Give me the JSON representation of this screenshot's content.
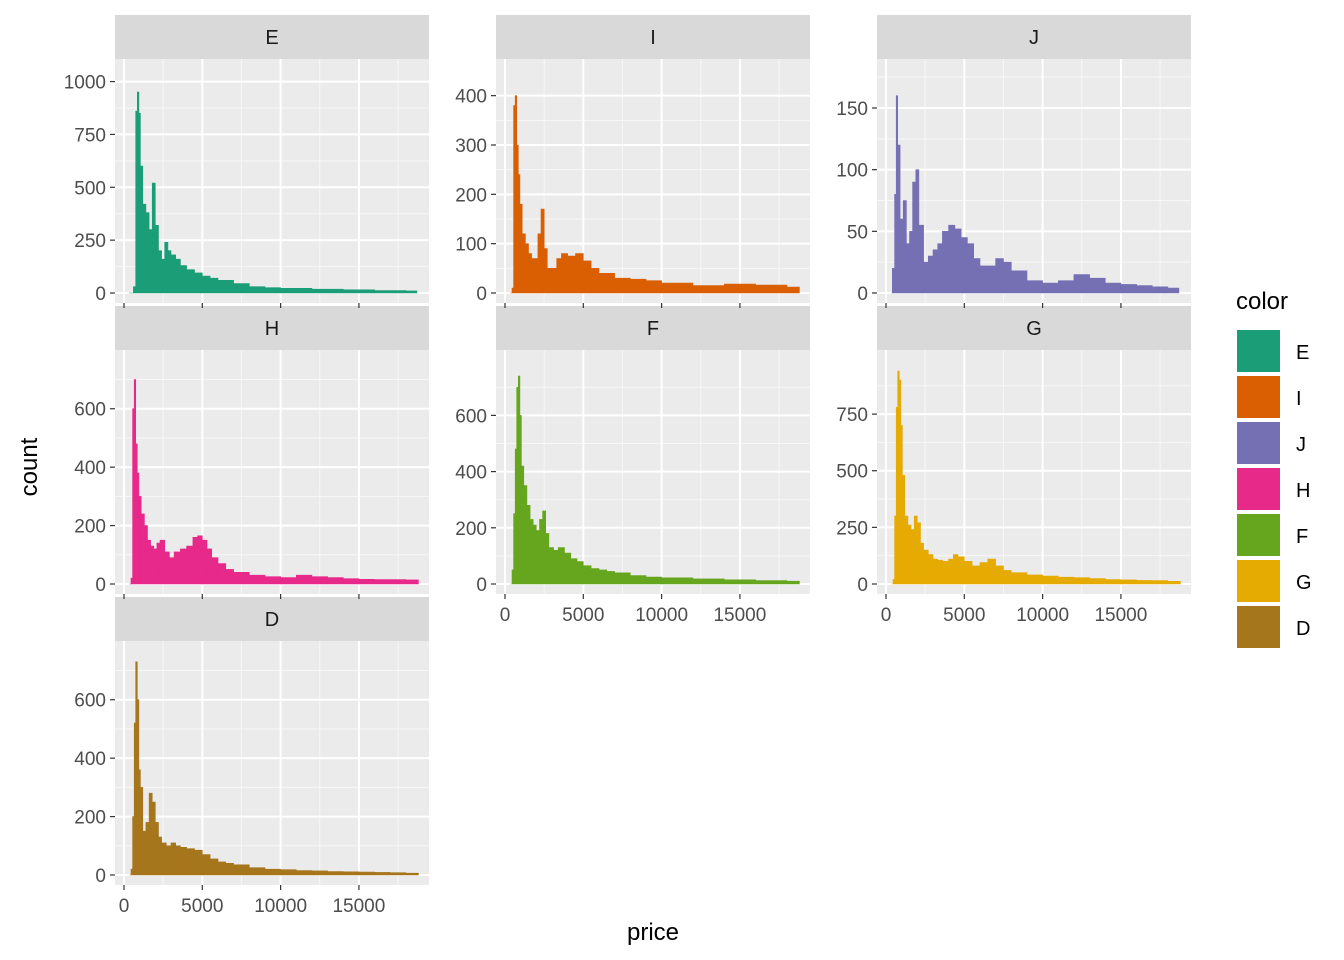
{
  "chart_data": {
    "type": "bar",
    "subtype": "faceted-histogram",
    "title": "",
    "xlabel": "price",
    "ylabel": "count",
    "x_range": [
      0,
      18900
    ],
    "x_ticks": [
      0,
      5000,
      10000,
      15000
    ],
    "x_tick_labels": [
      "0",
      "5000",
      "10000",
      "15000"
    ],
    "grid": true,
    "legend": {
      "title": "color",
      "placement": "right",
      "entries": [
        {
          "label": "E",
          "color": "#1B9E77"
        },
        {
          "label": "I",
          "color": "#D95F02"
        },
        {
          "label": "J",
          "color": "#7570B3"
        },
        {
          "label": "H",
          "color": "#E7298A"
        },
        {
          "label": "F",
          "color": "#66A61E"
        },
        {
          "label": "G",
          "color": "#E6AB02"
        },
        {
          "label": "D",
          "color": "#A6761D"
        }
      ]
    },
    "facets": [
      {
        "label": "E",
        "color": "#1B9E77",
        "ylim": [
          0,
          1050
        ],
        "y_ticks": [
          0,
          250,
          500,
          750,
          1000
        ],
        "y_tick_labels": [
          "0",
          "250",
          "500",
          "750",
          "1000"
        ],
        "points": [
          [
            326,
            0
          ],
          [
            600,
            30
          ],
          [
            750,
            860
          ],
          [
            850,
            950
          ],
          [
            950,
            850
          ],
          [
            1050,
            600
          ],
          [
            1200,
            420
          ],
          [
            1400,
            380
          ],
          [
            1600,
            300
          ],
          [
            1800,
            520
          ],
          [
            2000,
            320
          ],
          [
            2200,
            200
          ],
          [
            2400,
            160
          ],
          [
            2600,
            240
          ],
          [
            2800,
            200
          ],
          [
            3000,
            180
          ],
          [
            3300,
            160
          ],
          [
            3600,
            130
          ],
          [
            4000,
            110
          ],
          [
            4500,
            95
          ],
          [
            5000,
            80
          ],
          [
            5500,
            70
          ],
          [
            6000,
            60
          ],
          [
            7000,
            45
          ],
          [
            8000,
            30
          ],
          [
            9000,
            25
          ],
          [
            10000,
            22
          ],
          [
            12000,
            18
          ],
          [
            14000,
            15
          ],
          [
            16000,
            12
          ],
          [
            18000,
            10
          ],
          [
            18700,
            0
          ]
        ]
      },
      {
        "label": "I",
        "color": "#D95F02",
        "ylim": [
          0,
          450
        ],
        "y_ticks": [
          0,
          100,
          200,
          300,
          400
        ],
        "y_tick_labels": [
          "0",
          "100",
          "200",
          "300",
          "400"
        ],
        "points": [
          [
            334,
            0
          ],
          [
            450,
            10
          ],
          [
            550,
            380
          ],
          [
            650,
            400
          ],
          [
            750,
            300
          ],
          [
            850,
            240
          ],
          [
            950,
            180
          ],
          [
            1100,
            120
          ],
          [
            1300,
            100
          ],
          [
            1500,
            80
          ],
          [
            1700,
            70
          ],
          [
            1900,
            70
          ],
          [
            2100,
            120
          ],
          [
            2300,
            170
          ],
          [
            2500,
            90
          ],
          [
            2700,
            50
          ],
          [
            3000,
            50
          ],
          [
            3300,
            70
          ],
          [
            3600,
            80
          ],
          [
            4000,
            75
          ],
          [
            4500,
            80
          ],
          [
            5000,
            65
          ],
          [
            5500,
            50
          ],
          [
            6000,
            40
          ],
          [
            7000,
            30
          ],
          [
            8000,
            28
          ],
          [
            9000,
            25
          ],
          [
            10000,
            20
          ],
          [
            12000,
            15
          ],
          [
            14000,
            18
          ],
          [
            16000,
            16
          ],
          [
            18000,
            12
          ],
          [
            18800,
            0
          ]
        ]
      },
      {
        "label": "J",
        "color": "#7570B3",
        "ylim": [
          0,
          180
        ],
        "y_ticks": [
          0,
          50,
          100,
          150
        ],
        "y_tick_labels": [
          "0",
          "50",
          "100",
          "150"
        ],
        "points": [
          [
            335,
            0
          ],
          [
            400,
            20
          ],
          [
            550,
            80
          ],
          [
            650,
            160
          ],
          [
            750,
            120
          ],
          [
            900,
            60
          ],
          [
            1100,
            75
          ],
          [
            1300,
            40
          ],
          [
            1500,
            50
          ],
          [
            1700,
            90
          ],
          [
            1900,
            100
          ],
          [
            2100,
            55
          ],
          [
            2400,
            25
          ],
          [
            2700,
            30
          ],
          [
            3000,
            35
          ],
          [
            3300,
            40
          ],
          [
            3600,
            50
          ],
          [
            4000,
            55
          ],
          [
            4400,
            52
          ],
          [
            4800,
            45
          ],
          [
            5200,
            40
          ],
          [
            5600,
            28
          ],
          [
            6000,
            22
          ],
          [
            6500,
            22
          ],
          [
            7000,
            28
          ],
          [
            7500,
            25
          ],
          [
            8000,
            18
          ],
          [
            9000,
            10
          ],
          [
            10000,
            8
          ],
          [
            11000,
            10
          ],
          [
            12000,
            15
          ],
          [
            13000,
            12
          ],
          [
            14000,
            8
          ],
          [
            15000,
            7
          ],
          [
            16000,
            6
          ],
          [
            17000,
            5
          ],
          [
            18000,
            4
          ],
          [
            18700,
            0
          ]
        ]
      },
      {
        "label": "H",
        "color": "#E7298A",
        "ylim": [
          0,
          760
        ],
        "y_ticks": [
          0,
          200,
          400,
          600
        ],
        "y_tick_labels": [
          "0",
          "200",
          "400",
          "600"
        ],
        "points": [
          [
            337,
            0
          ],
          [
            450,
            20
          ],
          [
            550,
            600
          ],
          [
            650,
            700
          ],
          [
            750,
            480
          ],
          [
            850,
            380
          ],
          [
            950,
            300
          ],
          [
            1100,
            240
          ],
          [
            1300,
            200
          ],
          [
            1500,
            150
          ],
          [
            1700,
            130
          ],
          [
            1900,
            120
          ],
          [
            2100,
            140
          ],
          [
            2300,
            150
          ],
          [
            2600,
            110
          ],
          [
            2900,
            90
          ],
          [
            3200,
            110
          ],
          [
            3600,
            120
          ],
          [
            4000,
            130
          ],
          [
            4400,
            160
          ],
          [
            4700,
            165
          ],
          [
            5000,
            150
          ],
          [
            5300,
            120
          ],
          [
            5600,
            90
          ],
          [
            6000,
            70
          ],
          [
            6500,
            50
          ],
          [
            7000,
            40
          ],
          [
            8000,
            30
          ],
          [
            9000,
            25
          ],
          [
            10000,
            22
          ],
          [
            11000,
            30
          ],
          [
            12000,
            25
          ],
          [
            13000,
            22
          ],
          [
            14000,
            18
          ],
          [
            15000,
            16
          ],
          [
            16000,
            15
          ],
          [
            17000,
            15
          ],
          [
            18000,
            14
          ],
          [
            18800,
            0
          ]
        ]
      },
      {
        "label": "F",
        "color": "#66A61E",
        "ylim": [
          0,
          790
        ],
        "y_ticks": [
          0,
          200,
          400,
          600
        ],
        "y_tick_labels": [
          "0",
          "200",
          "400",
          "600"
        ],
        "points": [
          [
            342,
            0
          ],
          [
            450,
            50
          ],
          [
            550,
            250
          ],
          [
            650,
            480
          ],
          [
            750,
            700
          ],
          [
            850,
            740
          ],
          [
            950,
            600
          ],
          [
            1050,
            420
          ],
          [
            1200,
            350
          ],
          [
            1400,
            280
          ],
          [
            1600,
            230
          ],
          [
            1800,
            210
          ],
          [
            2000,
            190
          ],
          [
            2200,
            230
          ],
          [
            2400,
            260
          ],
          [
            2600,
            180
          ],
          [
            2800,
            130
          ],
          [
            3100,
            120
          ],
          [
            3400,
            130
          ],
          [
            3800,
            110
          ],
          [
            4200,
            90
          ],
          [
            4600,
            80
          ],
          [
            5000,
            65
          ],
          [
            5500,
            55
          ],
          [
            6000,
            50
          ],
          [
            6500,
            45
          ],
          [
            7000,
            40
          ],
          [
            8000,
            30
          ],
          [
            9000,
            25
          ],
          [
            10000,
            22
          ],
          [
            12000,
            18
          ],
          [
            14000,
            15
          ],
          [
            16000,
            12
          ],
          [
            18000,
            10
          ],
          [
            18800,
            0
          ]
        ]
      },
      {
        "label": "G",
        "color": "#E6AB02",
        "ylim": [
          0,
          980
        ],
        "y_ticks": [
          0,
          250,
          500,
          750
        ],
        "y_tick_labels": [
          "0",
          "250",
          "500",
          "750"
        ],
        "points": [
          [
            354,
            0
          ],
          [
            450,
            20
          ],
          [
            550,
            300
          ],
          [
            650,
            780
          ],
          [
            750,
            940
          ],
          [
            850,
            900
          ],
          [
            950,
            700
          ],
          [
            1050,
            480
          ],
          [
            1200,
            300
          ],
          [
            1400,
            260
          ],
          [
            1600,
            240
          ],
          [
            1800,
            300
          ],
          [
            2000,
            270
          ],
          [
            2200,
            180
          ],
          [
            2400,
            150
          ],
          [
            2700,
            130
          ],
          [
            3000,
            110
          ],
          [
            3300,
            105
          ],
          [
            3600,
            100
          ],
          [
            4000,
            110
          ],
          [
            4300,
            130
          ],
          [
            4600,
            120
          ],
          [
            5000,
            100
          ],
          [
            5500,
            80
          ],
          [
            6000,
            95
          ],
          [
            6500,
            110
          ],
          [
            7000,
            80
          ],
          [
            7500,
            60
          ],
          [
            8000,
            50
          ],
          [
            9000,
            40
          ],
          [
            10000,
            35
          ],
          [
            11000,
            30
          ],
          [
            12000,
            28
          ],
          [
            13000,
            24
          ],
          [
            14000,
            20
          ],
          [
            15000,
            18
          ],
          [
            16000,
            16
          ],
          [
            17000,
            15
          ],
          [
            18000,
            12
          ],
          [
            18800,
            0
          ]
        ]
      },
      {
        "label": "D",
        "color": "#A6761D",
        "ylim": [
          0,
          760
        ],
        "y_ticks": [
          0,
          200,
          400,
          600
        ],
        "y_tick_labels": [
          "0",
          "200",
          "400",
          "600"
        ],
        "points": [
          [
            357,
            0
          ],
          [
            450,
            20
          ],
          [
            550,
            200
          ],
          [
            650,
            520
          ],
          [
            750,
            730
          ],
          [
            850,
            600
          ],
          [
            950,
            360
          ],
          [
            1050,
            300
          ],
          [
            1200,
            150
          ],
          [
            1400,
            180
          ],
          [
            1600,
            280
          ],
          [
            1800,
            250
          ],
          [
            2000,
            180
          ],
          [
            2200,
            130
          ],
          [
            2400,
            110
          ],
          [
            2700,
            100
          ],
          [
            3000,
            110
          ],
          [
            3300,
            100
          ],
          [
            3600,
            95
          ],
          [
            4000,
            90
          ],
          [
            4500,
            85
          ],
          [
            5000,
            70
          ],
          [
            5500,
            55
          ],
          [
            6000,
            45
          ],
          [
            6500,
            40
          ],
          [
            7000,
            35
          ],
          [
            8000,
            25
          ],
          [
            9000,
            20
          ],
          [
            10000,
            18
          ],
          [
            11000,
            15
          ],
          [
            12000,
            14
          ],
          [
            13000,
            12
          ],
          [
            14000,
            11
          ],
          [
            15000,
            10
          ],
          [
            16000,
            9
          ],
          [
            17000,
            8
          ],
          [
            18000,
            6
          ],
          [
            18800,
            0
          ]
        ]
      }
    ]
  }
}
